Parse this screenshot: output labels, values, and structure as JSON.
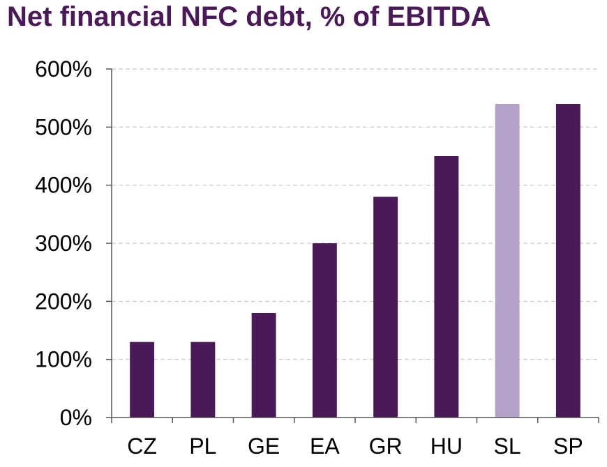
{
  "chart_data": {
    "type": "bar",
    "title": "Net financial NFC debt, % of EBITDA",
    "categories": [
      "CZ",
      "PL",
      "GE",
      "EA",
      "GR",
      "HU",
      "SL",
      "SP"
    ],
    "values": [
      130,
      130,
      180,
      300,
      380,
      450,
      540,
      540
    ],
    "value_unit": "%",
    "ylim": [
      0,
      600
    ],
    "yticks": [
      0,
      100,
      200,
      300,
      400,
      500,
      600
    ],
    "ytick_labels": [
      "0%",
      "100%",
      "200%",
      "300%",
      "400%",
      "500%",
      "600%"
    ],
    "grid": true,
    "colors": {
      "default": "#4a1a58",
      "highlight": "#b3a1c9",
      "title": "#4a1a58"
    },
    "highlight_categories": [
      "SL"
    ]
  }
}
